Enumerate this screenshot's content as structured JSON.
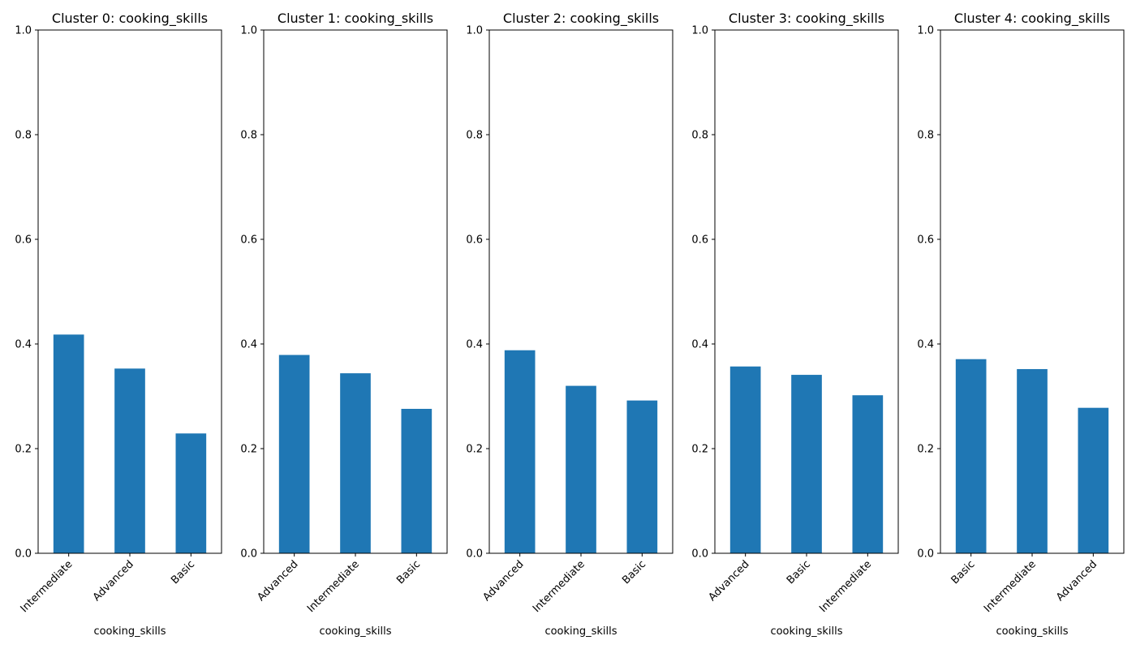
{
  "chart_data": [
    {
      "type": "bar",
      "title": "Cluster 0: cooking_skills",
      "xlabel": "cooking_skills",
      "ylabel": "",
      "categories": [
        "Intermediate",
        "Advanced",
        "Basic"
      ],
      "values": [
        0.418,
        0.353,
        0.229
      ],
      "ylim": [
        0,
        1
      ],
      "yticks": [
        "0.0",
        "0.2",
        "0.4",
        "0.6",
        "0.8",
        "1.0"
      ],
      "bar_color": "#1f77b4",
      "grid": false
    },
    {
      "type": "bar",
      "title": "Cluster 1: cooking_skills",
      "xlabel": "cooking_skills",
      "ylabel": "",
      "categories": [
        "Advanced",
        "Intermediate",
        "Basic"
      ],
      "values": [
        0.379,
        0.344,
        0.276
      ],
      "ylim": [
        0,
        1
      ],
      "yticks": [
        "0.0",
        "0.2",
        "0.4",
        "0.6",
        "0.8",
        "1.0"
      ],
      "bar_color": "#1f77b4",
      "grid": false
    },
    {
      "type": "bar",
      "title": "Cluster 2: cooking_skills",
      "xlabel": "cooking_skills",
      "ylabel": "",
      "categories": [
        "Advanced",
        "Intermediate",
        "Basic"
      ],
      "values": [
        0.388,
        0.32,
        0.292
      ],
      "ylim": [
        0,
        1
      ],
      "yticks": [
        "0.0",
        "0.2",
        "0.4",
        "0.6",
        "0.8",
        "1.0"
      ],
      "bar_color": "#1f77b4",
      "grid": false
    },
    {
      "type": "bar",
      "title": "Cluster 3: cooking_skills",
      "xlabel": "cooking_skills",
      "ylabel": "",
      "categories": [
        "Advanced",
        "Basic",
        "Intermediate"
      ],
      "values": [
        0.357,
        0.341,
        0.302
      ],
      "ylim": [
        0,
        1
      ],
      "yticks": [
        "0.0",
        "0.2",
        "0.4",
        "0.6",
        "0.8",
        "1.0"
      ],
      "bar_color": "#1f77b4",
      "grid": false
    },
    {
      "type": "bar",
      "title": "Cluster 4: cooking_skills",
      "xlabel": "cooking_skills",
      "ylabel": "",
      "categories": [
        "Basic",
        "Intermediate",
        "Advanced"
      ],
      "values": [
        0.371,
        0.352,
        0.278
      ],
      "ylim": [
        0,
        1
      ],
      "yticks": [
        "0.0",
        "0.2",
        "0.4",
        "0.6",
        "0.8",
        "1.0"
      ],
      "bar_color": "#1f77b4",
      "grid": false
    }
  ]
}
